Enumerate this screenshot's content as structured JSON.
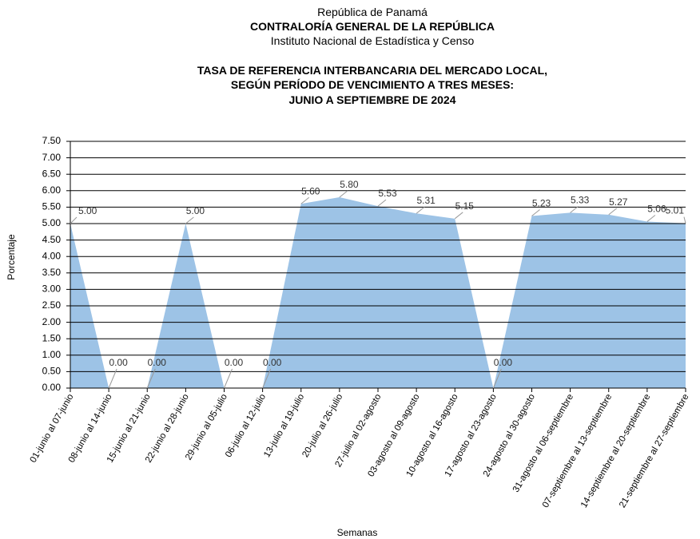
{
  "header": {
    "line1": "República de Panamá",
    "line2": "CONTRALORÍA GENERAL DE LA REPÚBLICA",
    "line3": "Instituto Nacional de Estadística y Censo"
  },
  "chart_data": {
    "type": "area",
    "title": [
      "TASA DE REFERENCIA INTERBANCARIA DEL MERCADO LOCAL,",
      "SEGÚN PERÍODO DE VENCIMIENTO A TRES MESES:",
      "JUNIO A SEPTIEMBRE DE 2024"
    ],
    "y_label": "Porcentaje",
    "x_label": "Semanas",
    "categories": [
      "01-junio al 07-junio",
      "08-junio al 14-junio",
      "15-junio al 21-junio",
      "22-junio al 28-junio",
      "29-junio al 05-julio",
      "06-julio al 12-julio",
      "13-julio al 19-julio",
      "20-julio al 26-julio",
      "27-julio al 02-agosto",
      "03-agosto al 09-agosto",
      "10-agosto al 16-agosto",
      "17-agosto al 23-agosto",
      "24-agosto al 30-agosto",
      "31-agosto al 06-septiembre",
      "07-septiembre al 13-septiembre",
      "14-septiembre al 20-septiembre",
      "21-septiembre al 27-septiembre"
    ],
    "values": [
      5.0,
      0,
      0,
      5.0,
      0,
      0,
      5.6,
      5.8,
      5.53,
      5.31,
      5.15,
      0,
      5.23,
      5.33,
      5.27,
      5.06,
      5.01
    ],
    "value_labels": [
      "5.00",
      "0.00",
      "0.00",
      "5.00",
      "0.00",
      "0.00",
      "5.60",
      "5.80",
      "5.53",
      "5.31",
      "5.15",
      "0.00",
      "5.23",
      "5.33",
      "5.27",
      "5.06",
      "5.01"
    ],
    "color": "#9dc3e6",
    "ylim": [
      0,
      7.5
    ],
    "yticks": [
      {
        "value": 0,
        "label": "0.00"
      },
      {
        "value": 0.5,
        "label": "0.50"
      },
      {
        "value": 1,
        "label": "1.00"
      },
      {
        "value": 1.5,
        "label": "1.50"
      },
      {
        "value": 2,
        "label": "2.00"
      },
      {
        "value": 2.5,
        "label": "2.50"
      },
      {
        "value": 3,
        "label": "3.00"
      },
      {
        "value": 3.5,
        "label": "3.50"
      },
      {
        "value": 4,
        "label": "4.00"
      },
      {
        "value": 4.5,
        "label": "4.50"
      },
      {
        "value": 5,
        "label": "5.00"
      },
      {
        "value": 5.5,
        "label": "5.50"
      },
      {
        "value": 6,
        "label": "6.00"
      },
      {
        "value": 6.5,
        "label": "6.50"
      },
      {
        "value": 7,
        "label": "7.00"
      },
      {
        "value": 7.5,
        "label": "7.50"
      }
    ],
    "grid": true
  }
}
